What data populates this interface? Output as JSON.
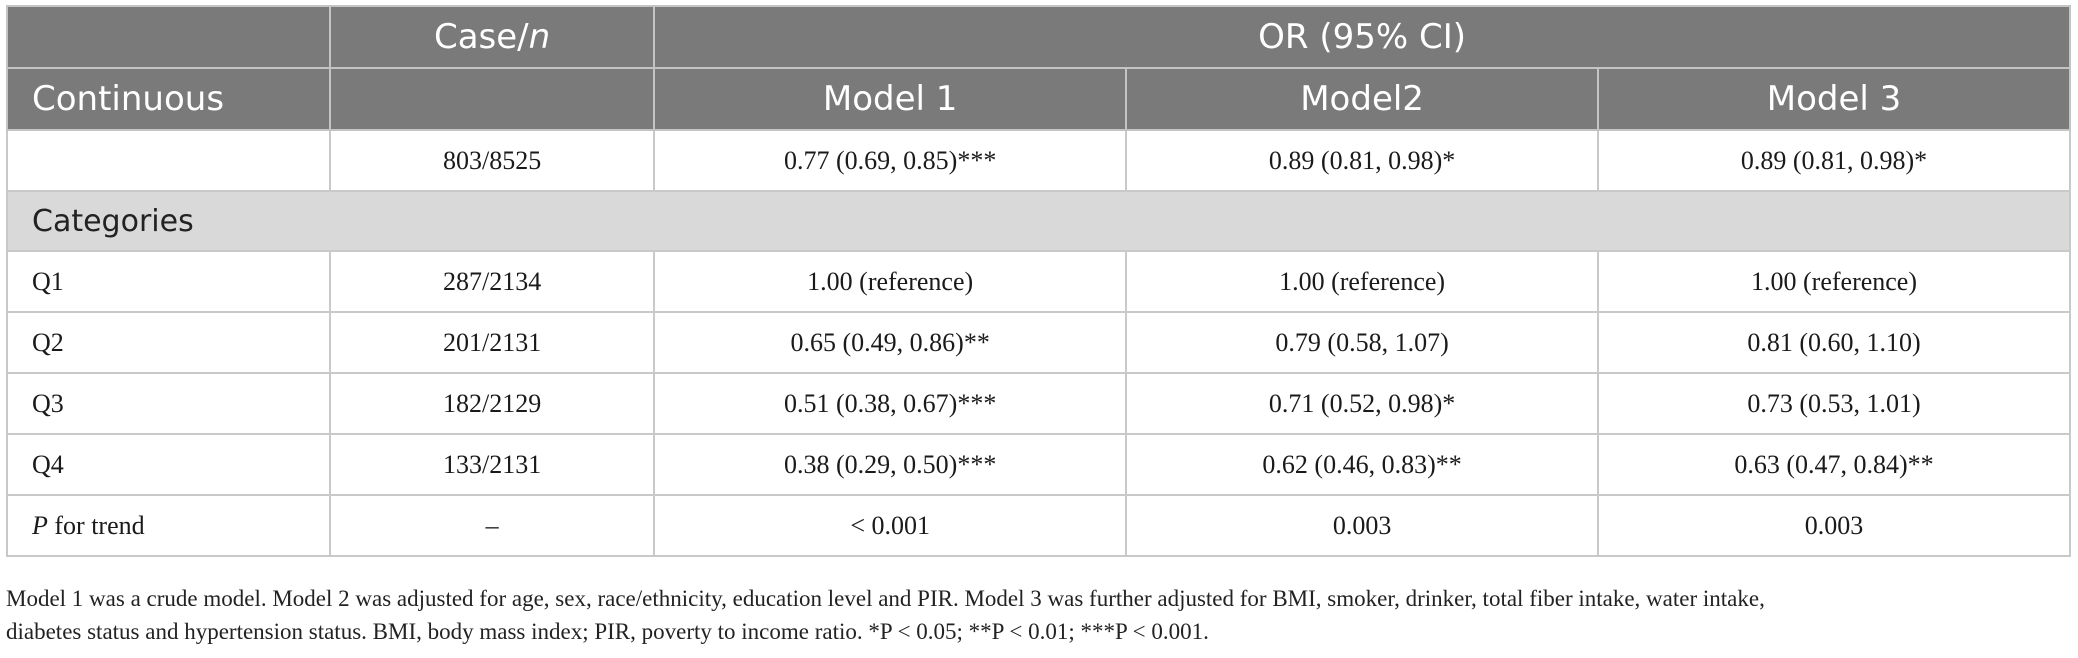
{
  "header": {
    "case_label": "Case/",
    "case_italic": "n",
    "or_label": "OR (95% CI)",
    "continuous_label": "Continuous",
    "model1": "Model 1",
    "model2": "Model2",
    "model3": "Model 3"
  },
  "continuous_row": {
    "case": "803/8525",
    "m1": "0.77 (0.69, 0.85)***",
    "m2": "0.89 (0.81, 0.98)*",
    "m3": "0.89 (0.81, 0.98)*"
  },
  "categories_label": "Categories",
  "rows": [
    {
      "label": "Q1",
      "case": "287/2134",
      "m1": "1.00 (reference)",
      "m2": "1.00 (reference)",
      "m3": "1.00 (reference)"
    },
    {
      "label": "Q2",
      "case": "201/2131",
      "m1": "0.65 (0.49, 0.86)**",
      "m2": "0.79 (0.58, 1.07)",
      "m3": "0.81 (0.60, 1.10)"
    },
    {
      "label": "Q3",
      "case": "182/2129",
      "m1": "0.51 (0.38, 0.67)***",
      "m2": "0.71 (0.52, 0.98)*",
      "m3": "0.73 (0.53, 1.01)"
    },
    {
      "label": "Q4",
      "case": "133/2131",
      "m1": "0.38 (0.29, 0.50)***",
      "m2": "0.62 (0.46, 0.83)**",
      "m3": "0.63 (0.47, 0.84)**"
    }
  ],
  "trend_row": {
    "label_italic": "P",
    "label_rest": " for trend",
    "case": "–",
    "m1": "< 0.001",
    "m2": "0.003",
    "m3": "0.003"
  },
  "footnote": {
    "line1": "Model 1 was a crude model. Model 2 was adjusted for age, sex, race/ethnicity, education level and PIR. Model 3 was further adjusted for BMI, smoker, drinker, total fiber intake, water intake,",
    "line2": "diabetes status and hypertension status. BMI, body mass index; PIR, poverty to income ratio. *P < 0.05; **P < 0.01; ***P < 0.001."
  }
}
